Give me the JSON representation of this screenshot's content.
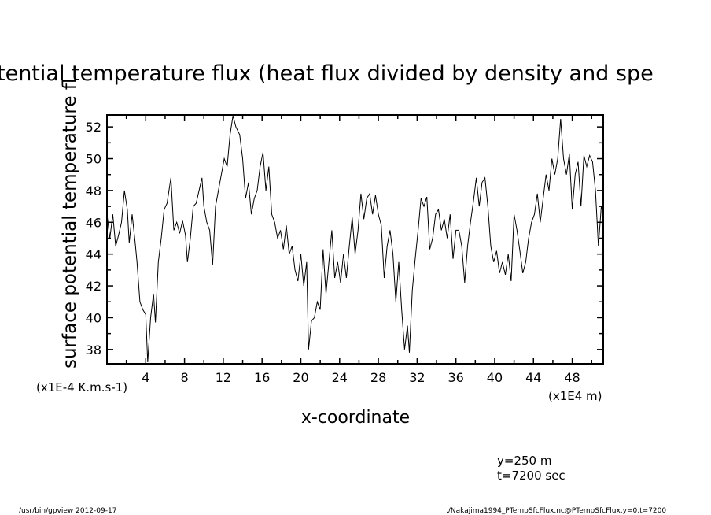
{
  "chart_data": {
    "type": "line",
    "title": "tential temperature flux (heat flux divided by density and spe",
    "ylabel": "surface potential temperature fl",
    "xlabel": "x-coordinate",
    "y_units": "(x1E-4 K.m.s-1)",
    "x_units": "(x1E4 m)",
    "xlim": [
      0,
      51.2
    ],
    "ylim": [
      37.1,
      52.75
    ],
    "x_ticks": [
      4,
      8,
      12,
      16,
      20,
      24,
      28,
      32,
      36,
      40,
      44,
      48
    ],
    "x_tick_labels": [
      "4",
      "8",
      "12",
      "16",
      "20",
      "24",
      "28",
      "32",
      "36",
      "40",
      "44",
      "48"
    ],
    "y_ticks": [
      38,
      40,
      42,
      44,
      46,
      48,
      50,
      52
    ],
    "y_tick_labels": [
      "38",
      "40",
      "42",
      "44",
      "46",
      "48",
      "50",
      "52"
    ],
    "grid": false,
    "series": [
      {
        "name": "PTempSfcFlux",
        "x": [
          0,
          0.3,
          0.6,
          0.9,
          1.2,
          1.5,
          1.8,
          2.1,
          2.3,
          2.6,
          2.9,
          3.1,
          3.4,
          3.7,
          4.0,
          4.2,
          4.5,
          4.8,
          5.0,
          5.3,
          5.6,
          5.9,
          6.2,
          6.6,
          6.9,
          7.2,
          7.5,
          7.8,
          8.1,
          8.3,
          8.6,
          8.9,
          9.2,
          9.5,
          9.8,
          10.0,
          10.3,
          10.6,
          10.9,
          11.2,
          11.5,
          11.8,
          12.1,
          12.4,
          12.7,
          13.0,
          13.3,
          13.7,
          14.0,
          14.3,
          14.6,
          14.9,
          15.2,
          15.5,
          15.8,
          16.1,
          16.4,
          16.7,
          17.0,
          17.3,
          17.6,
          17.9,
          18.2,
          18.5,
          18.8,
          19.1,
          19.4,
          19.7,
          20.0,
          20.3,
          20.6,
          20.8,
          21.1,
          21.4,
          21.7,
          22.0,
          22.3,
          22.6,
          22.9,
          23.2,
          23.5,
          23.8,
          24.1,
          24.4,
          24.7,
          25.0,
          25.3,
          25.6,
          25.9,
          26.2,
          26.5,
          26.8,
          27.1,
          27.4,
          27.7,
          28.0,
          28.3,
          28.6,
          28.9,
          29.2,
          29.5,
          29.8,
          30.1,
          30.4,
          30.7,
          31.0,
          31.2,
          31.5,
          31.8,
          32.1,
          32.4,
          32.7,
          33.0,
          33.3,
          33.6,
          33.9,
          34.2,
          34.5,
          34.8,
          35.1,
          35.4,
          35.7,
          36.0,
          36.3,
          36.6,
          36.9,
          37.2,
          37.5,
          37.8,
          38.1,
          38.4,
          38.7,
          39.0,
          39.3,
          39.6,
          39.9,
          40.2,
          40.5,
          40.8,
          41.1,
          41.4,
          41.7,
          42.0,
          42.3,
          42.6,
          42.9,
          43.2,
          43.5,
          43.8,
          44.1,
          44.4,
          44.7,
          45.0,
          45.3,
          45.6,
          45.9,
          46.2,
          46.5,
          46.8,
          47.1,
          47.4,
          47.7,
          48.0,
          48.3,
          48.6,
          48.9,
          49.2,
          49.5,
          49.8,
          50.1,
          50.4,
          50.7,
          51.0,
          51.2
        ],
        "y": [
          46.5,
          45,
          46.5,
          44.5,
          45.2,
          46,
          48,
          46.8,
          44.7,
          46.5,
          44.8,
          43.5,
          41,
          40.5,
          40.2,
          37.2,
          40,
          41.5,
          39.7,
          43.5,
          45,
          46.8,
          47.2,
          48.8,
          45.5,
          46,
          45.3,
          46.1,
          45.2,
          43.5,
          45,
          47,
          47.2,
          48,
          48.8,
          47,
          46,
          45.5,
          43.3,
          47,
          48,
          49,
          50,
          49.5,
          51.5,
          52.7,
          52,
          51.5,
          50,
          47.5,
          48.5,
          46.5,
          47.5,
          48,
          49.5,
          50.4,
          48,
          49.5,
          46.5,
          46,
          45,
          45.5,
          44.3,
          45.8,
          44,
          44.5,
          43,
          42.3,
          44,
          42,
          43.5,
          38,
          39.8,
          40,
          41,
          40.5,
          44.3,
          41.5,
          43.5,
          45.5,
          42.5,
          43.5,
          42.2,
          44,
          42.5,
          44.5,
          46.3,
          44,
          45.5,
          47.8,
          46.2,
          47.5,
          47.8,
          46.5,
          47.7,
          46.5,
          45.8,
          42.5,
          44.5,
          45.5,
          44,
          41,
          43.5,
          40.5,
          38,
          39.5,
          37.8,
          41.7,
          43.7,
          45.5,
          47.5,
          47,
          47.6,
          44.3,
          45,
          46.5,
          46.8,
          45.5,
          46.2,
          45,
          46.5,
          43.7,
          45.5,
          45.5,
          44.5,
          42.2,
          44.5,
          46,
          47.3,
          48.8,
          47,
          48.5,
          48.8,
          47,
          44.5,
          43.5,
          44.2,
          42.8,
          43.5,
          42.7,
          44,
          42.3,
          46.5,
          45.5,
          44.2,
          42.8,
          43.5,
          45,
          46,
          46.5,
          47.8,
          46,
          47.5,
          49,
          48,
          50,
          49,
          50,
          52.5,
          50,
          49,
          50.3,
          46.8,
          49,
          49.8,
          47,
          50.2,
          49.5,
          50.2,
          49.8,
          48,
          44.5,
          47,
          46.5
        ]
      }
    ]
  },
  "annotations": {
    "y_position": "y=250 m",
    "time": "t=7200 sec"
  },
  "footer": {
    "left": "/usr/bin/gpview  2012-09-17",
    "right": "./Nakajima1994_PTempSfcFlux.nc@PTempSfcFlux,y=0,t=7200"
  }
}
